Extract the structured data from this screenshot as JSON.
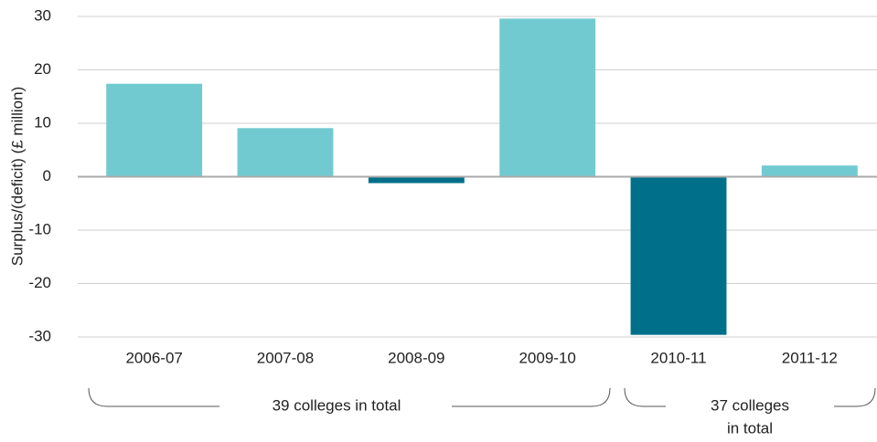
{
  "chart_data": {
    "type": "bar",
    "y_label": "Surplus/(deficit) (£ million)",
    "categories": [
      "2006-07",
      "2007-08",
      "2008-09",
      "2009-10",
      "2010-11",
      "2011-12"
    ],
    "values": [
      17.4,
      9.1,
      -1.2,
      29.6,
      -29.6,
      2.1
    ],
    "positive_color": "#72cad1",
    "negative_color": "#00708a",
    "ylim": [
      -30,
      30
    ],
    "yticks": [
      -30,
      -20,
      -10,
      0,
      10,
      20,
      30
    ],
    "grid": true,
    "annotations": [
      [
        "39 colleges in total"
      ],
      [
        "37 colleges",
        "in total"
      ]
    ]
  }
}
